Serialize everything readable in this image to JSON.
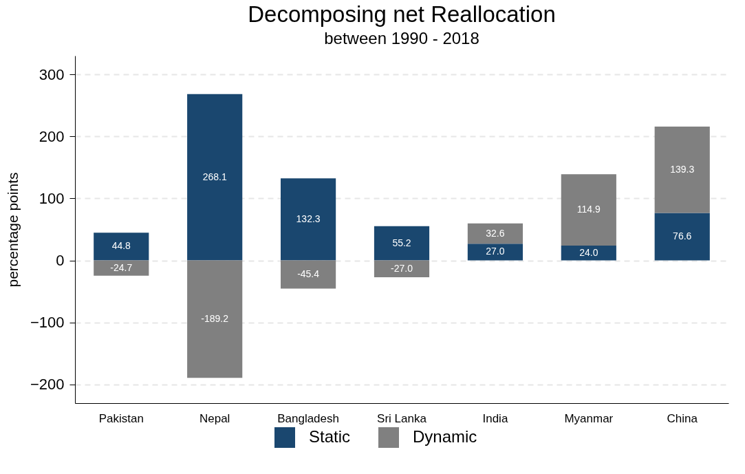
{
  "chart_data": {
    "type": "bar",
    "title": "Decomposing net Reallocation",
    "subtitle": "between 1990 - 2018",
    "ylabel": "percentage points",
    "categories": [
      "Pakistan",
      "Nepal",
      "Bangladesh",
      "Sri Lanka",
      "India",
      "Myanmar",
      "China"
    ],
    "series": [
      {
        "name": "Static",
        "color": "#1a476f",
        "values": [
          44.8,
          268.1,
          132.3,
          55.2,
          27.0,
          24.0,
          76.6
        ],
        "value_labels": [
          "44.8",
          "268.1",
          "132.3",
          "55.2",
          "27.0",
          "24.0",
          "76.6"
        ]
      },
      {
        "name": "Dynamic",
        "color": "#808080",
        "values": [
          -24.7,
          -189.2,
          -45.4,
          -27.0,
          32.6,
          114.9,
          139.3
        ],
        "value_labels": [
          "-24.7",
          "-189.2",
          "-45.4",
          "-27.0",
          "32.6",
          "114.9",
          "139.3"
        ]
      }
    ],
    "stacked": true,
    "ylim": [
      -230,
      330
    ],
    "yticks": [
      -200,
      -100,
      0,
      100,
      200,
      300
    ],
    "grid": "y",
    "legend": "bottom"
  }
}
